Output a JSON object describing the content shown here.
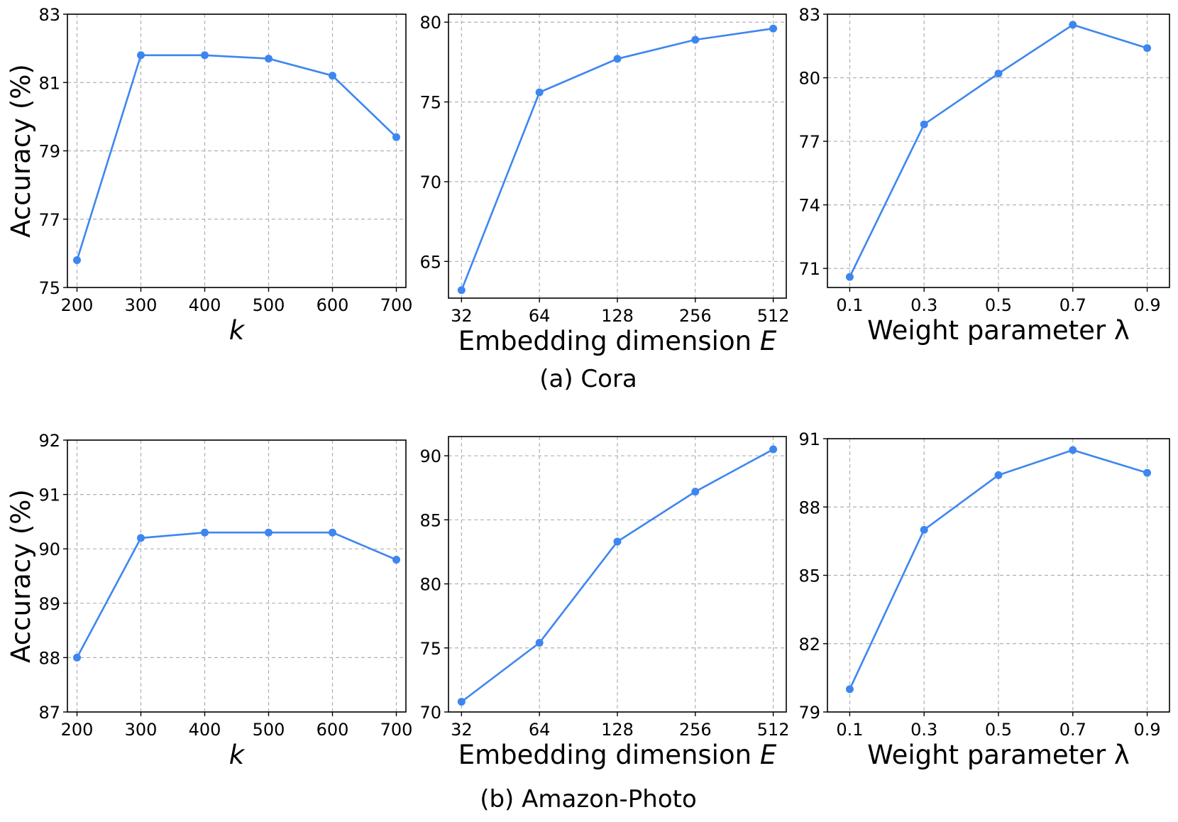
{
  "colors": {
    "series": "#3d86f0"
  },
  "captions": [
    "(a) Cora",
    "(b) Amazon-Photo"
  ],
  "chart_data": [
    {
      "type": "line",
      "dataset": "Cora",
      "xlabel": "k",
      "xlabel_italic": true,
      "ylabel": "Accuracy (%)",
      "x_scale": "linear",
      "xlim": [
        185,
        715
      ],
      "x": [
        200,
        300,
        400,
        500,
        600,
        700
      ],
      "x_ticks": [
        "200",
        "300",
        "400",
        "500",
        "600",
        "700"
      ],
      "values": [
        75.8,
        81.8,
        81.8,
        81.7,
        81.2,
        79.4
      ],
      "ylim": [
        75,
        83
      ],
      "y_ticks": [
        "75",
        "77",
        "79",
        "81",
        "83"
      ],
      "grid": true
    },
    {
      "type": "line",
      "dataset": "Cora",
      "xlabel": "Embedding dimension",
      "xlabel_suffix_italic": "E",
      "ylabel": "",
      "x_scale": "log2",
      "xlim": [
        28.5,
        575
      ],
      "x": [
        32,
        64,
        128,
        256,
        512
      ],
      "x_ticks": [
        "32",
        "64",
        "128",
        "256",
        "512"
      ],
      "values": [
        63.2,
        75.6,
        77.7,
        78.9,
        79.6
      ],
      "ylim": [
        62.7,
        80.5
      ],
      "y_ticks": [
        "65",
        "70",
        "75",
        "80"
      ],
      "grid": true
    },
    {
      "type": "line",
      "dataset": "Cora",
      "xlabel": "Weight parameter λ",
      "ylabel": "",
      "x_scale": "linear",
      "xlim": [
        0.04,
        0.96
      ],
      "x": [
        0.1,
        0.3,
        0.5,
        0.7,
        0.9
      ],
      "x_ticks": [
        "0.1",
        "0.3",
        "0.5",
        "0.7",
        "0.9"
      ],
      "values": [
        70.6,
        77.8,
        80.2,
        82.5,
        81.4
      ],
      "ylim": [
        70.1,
        83
      ],
      "y_ticks": [
        "71",
        "74",
        "77",
        "80",
        "83"
      ],
      "grid": true
    },
    {
      "type": "line",
      "dataset": "Amazon-Photo",
      "xlabel": "k",
      "xlabel_italic": true,
      "ylabel": "Accuracy (%)",
      "x_scale": "linear",
      "xlim": [
        185,
        715
      ],
      "x": [
        200,
        300,
        400,
        500,
        600,
        700
      ],
      "x_ticks": [
        "200",
        "300",
        "400",
        "500",
        "600",
        "700"
      ],
      "values": [
        88.0,
        90.2,
        90.3,
        90.3,
        90.3,
        89.8
      ],
      "ylim": [
        87,
        92
      ],
      "y_ticks": [
        "87",
        "88",
        "89",
        "90",
        "91",
        "92"
      ],
      "grid": true
    },
    {
      "type": "line",
      "dataset": "Amazon-Photo",
      "xlabel": "Embedding dimension",
      "xlabel_suffix_italic": "E",
      "ylabel": "",
      "x_scale": "log2",
      "xlim": [
        28.5,
        575
      ],
      "x": [
        32,
        64,
        128,
        256,
        512
      ],
      "x_ticks": [
        "32",
        "64",
        "128",
        "256",
        "512"
      ],
      "values": [
        70.8,
        75.4,
        83.3,
        87.2,
        90.5
      ],
      "ylim": [
        70,
        91.5
      ],
      "y_ticks": [
        "70",
        "75",
        "80",
        "85",
        "90"
      ],
      "grid": true
    },
    {
      "type": "line",
      "dataset": "Amazon-Photo",
      "xlabel": "Weight parameter λ",
      "ylabel": "",
      "x_scale": "linear",
      "xlim": [
        0.04,
        0.96
      ],
      "x": [
        0.1,
        0.3,
        0.5,
        0.7,
        0.9
      ],
      "x_ticks": [
        "0.1",
        "0.3",
        "0.5",
        "0.7",
        "0.9"
      ],
      "values": [
        80.0,
        87.0,
        89.4,
        90.5,
        89.5
      ],
      "ylim": [
        79,
        91
      ],
      "y_ticks": [
        "79",
        "82",
        "85",
        "88",
        "91"
      ],
      "grid": true
    }
  ]
}
